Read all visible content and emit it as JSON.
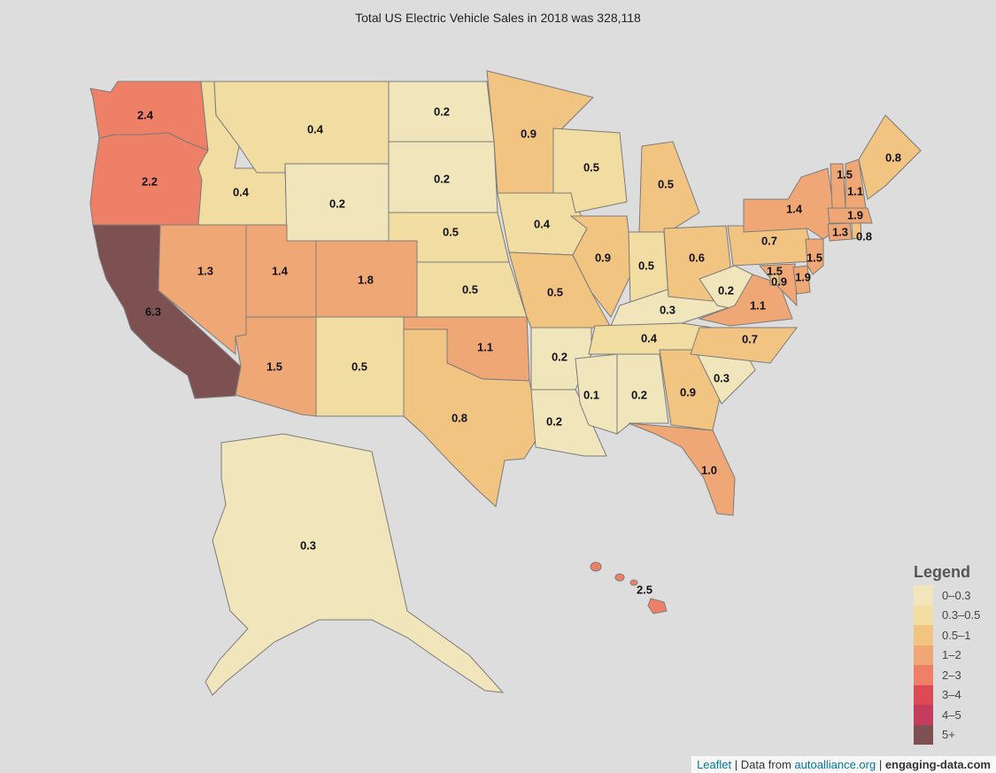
{
  "title": "Total US Electric Vehicle Sales in 2018 was 328,118",
  "colors": {
    "0-0.3": "#f0e5bb",
    "0.3-0.5": "#f1dca2",
    "0.5-1": "#f1c482",
    "1-2": "#efa875",
    "2-3": "#ef8068",
    "5+": "#7d5151"
  },
  "states": {
    "WA": {
      "value": "2.4",
      "bin": "2-3"
    },
    "OR": {
      "value": "2.2",
      "bin": "2-3"
    },
    "CA": {
      "value": "6.3",
      "bin": "5+"
    },
    "ID": {
      "value": "0.4",
      "bin": "0.3-0.5"
    },
    "NV": {
      "value": "1.3",
      "bin": "1-2"
    },
    "MT": {
      "value": "0.4",
      "bin": "0.3-0.5"
    },
    "WY": {
      "value": "0.2",
      "bin": "0-0.3"
    },
    "UT": {
      "value": "1.4",
      "bin": "1-2"
    },
    "AZ": {
      "value": "1.5",
      "bin": "1-2"
    },
    "CO": {
      "value": "1.8",
      "bin": "1-2"
    },
    "NM": {
      "value": "0.5",
      "bin": "0.3-0.5"
    },
    "ND": {
      "value": "0.2",
      "bin": "0-0.3"
    },
    "SD": {
      "value": "0.2",
      "bin": "0-0.3"
    },
    "NE": {
      "value": "0.5",
      "bin": "0.3-0.5"
    },
    "KS": {
      "value": "0.5",
      "bin": "0.3-0.5"
    },
    "OK": {
      "value": "1.1",
      "bin": "1-2"
    },
    "TX": {
      "value": "0.8",
      "bin": "0.5-1"
    },
    "MN": {
      "value": "0.9",
      "bin": "0.5-1"
    },
    "IA": {
      "value": "0.4",
      "bin": "0.3-0.5"
    },
    "MO": {
      "value": "0.5",
      "bin": "0.5-1"
    },
    "AR": {
      "value": "0.2",
      "bin": "0-0.3"
    },
    "LA": {
      "value": "0.2",
      "bin": "0-0.3"
    },
    "WI": {
      "value": "0.5",
      "bin": "0.3-0.5"
    },
    "IL": {
      "value": "0.9",
      "bin": "0.5-1"
    },
    "MS": {
      "value": "0.1",
      "bin": "0-0.3"
    },
    "MI": {
      "value": "0.5",
      "bin": "0.5-1"
    },
    "IN": {
      "value": "0.5",
      "bin": "0.3-0.5"
    },
    "KY": {
      "value": "0.3",
      "bin": "0-0.3"
    },
    "TN": {
      "value": "0.4",
      "bin": "0.3-0.5"
    },
    "AL": {
      "value": "0.2",
      "bin": "0-0.3"
    },
    "OH": {
      "value": "0.6",
      "bin": "0.5-1"
    },
    "WV": {
      "value": "0.2",
      "bin": "0-0.3"
    },
    "GA": {
      "value": "0.9",
      "bin": "0.5-1"
    },
    "FL": {
      "value": "1.0",
      "bin": "1-2"
    },
    "SC": {
      "value": "0.3",
      "bin": "0-0.3"
    },
    "NC": {
      "value": "0.7",
      "bin": "0.5-1"
    },
    "VA": {
      "value": "1.1",
      "bin": "1-2"
    },
    "PA": {
      "value": "0.7",
      "bin": "0.5-1"
    },
    "NY": {
      "value": "1.4",
      "bin": "1-2"
    },
    "MD": {
      "value": "1.5",
      "bin": "1-2"
    },
    "DC": {
      "value": "0.9",
      "bin": "0.5-1"
    },
    "DE": {
      "value": "1.9",
      "bin": "1-2"
    },
    "NJ": {
      "value": "1.5",
      "bin": "1-2"
    },
    "CT": {
      "value": "1.3",
      "bin": "1-2"
    },
    "RI": {
      "value": "0.8",
      "bin": "0.5-1"
    },
    "MA": {
      "value": "1.9",
      "bin": "1-2"
    },
    "VT": {
      "value": "1.5",
      "bin": "1-2"
    },
    "NH": {
      "value": "1.1",
      "bin": "1-2"
    },
    "ME": {
      "value": "0.8",
      "bin": "0.5-1"
    },
    "AK": {
      "value": "0.3",
      "bin": "0-0.3"
    },
    "HI": {
      "value": "2.5",
      "bin": "2-3"
    }
  },
  "legend": {
    "title": "Legend",
    "items": [
      {
        "label": "0–0.3",
        "color": "#f0e5bb"
      },
      {
        "label": "0.3–0.5",
        "color": "#f1dca2"
      },
      {
        "label": "0.5–1",
        "color": "#f1c482"
      },
      {
        "label": "1–2",
        "color": "#efa875"
      },
      {
        "label": "2–3",
        "color": "#ef8068"
      },
      {
        "label": "3–4",
        "color": "#dd4a56"
      },
      {
        "label": "4–5",
        "color": "#c43c5e"
      },
      {
        "label": "5+",
        "color": "#7d5151"
      }
    ]
  },
  "attribution": {
    "leaflet": "Leaflet",
    "sep1": " | Data from ",
    "source": "autoalliance.org",
    "sep2": " | ",
    "site": "engaging-data.com"
  }
}
